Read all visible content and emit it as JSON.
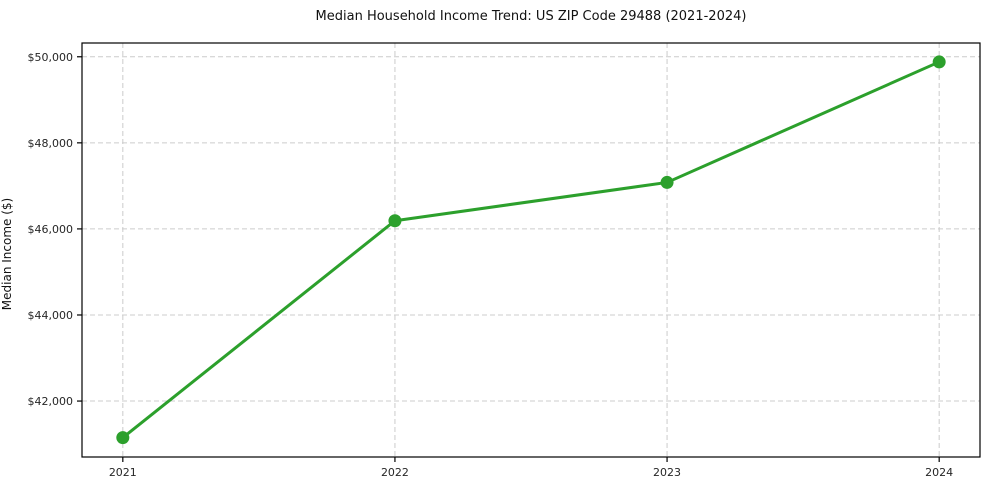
{
  "chart_data": {
    "type": "line",
    "title": "Median Household Income Trend: US ZIP Code 29488 (2021-2024)",
    "xlabel": "",
    "ylabel": "Median Income ($)",
    "categories": [
      "2021",
      "2022",
      "2023",
      "2024"
    ],
    "series": [
      {
        "name": "Median Household Income",
        "values": [
          41150,
          46190,
          47080,
          49880
        ]
      }
    ],
    "y_ticks": {
      "values": [
        42000,
        44000,
        46000,
        48000,
        50000
      ],
      "labels": [
        "$42,000",
        "$44,000",
        "$46,000",
        "$48,000",
        "$50,000"
      ]
    },
    "ylim": [
      40700,
      50320
    ],
    "xlim": [
      -0.15,
      3.15
    ],
    "grid": true,
    "legend_position": "none",
    "colors": {
      "line": "#2ca02c",
      "marker": "#2ca02c",
      "grid": "#cccccc",
      "axis": "#000000",
      "tick_label": "#262626",
      "background": "#ffffff"
    }
  }
}
